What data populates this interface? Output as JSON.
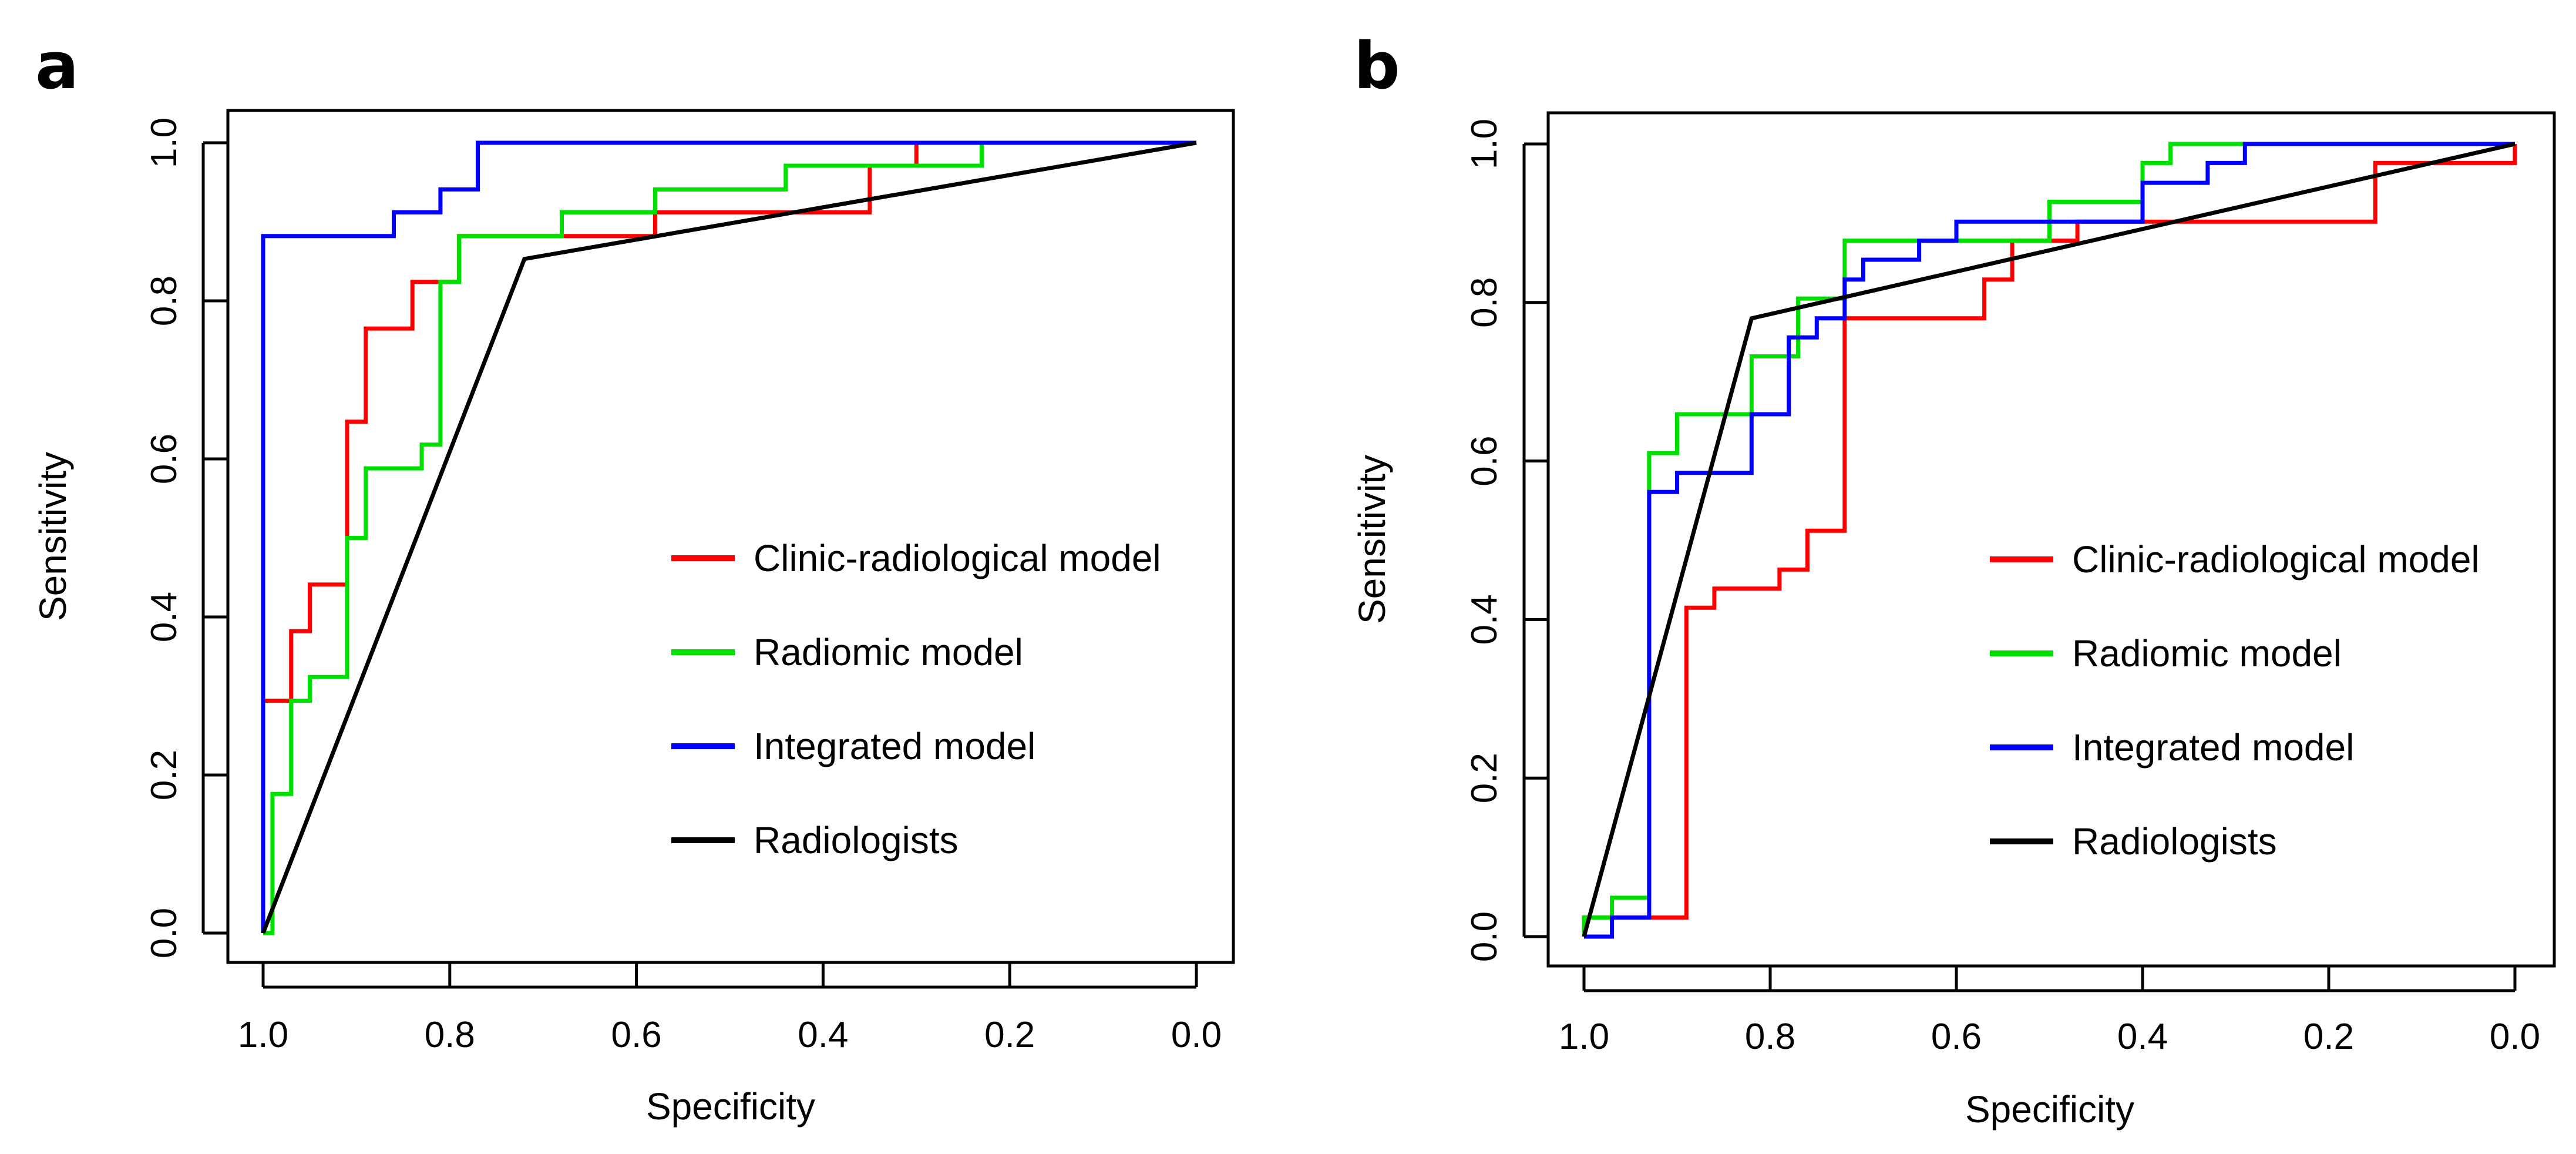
{
  "chart_data": [
    {
      "panel_label": "a",
      "type": "line",
      "xlabel": "Specificity",
      "ylabel": "Sensitivity",
      "xlim": [
        1.0,
        0.0
      ],
      "ylim": [
        0.0,
        1.0
      ],
      "x_ticks": [
        "1.0",
        "0.8",
        "0.6",
        "0.4",
        "0.2",
        "0.0"
      ],
      "y_ticks": [
        "0.0",
        "0.2",
        "0.4",
        "0.6",
        "0.8",
        "1.0"
      ],
      "grid": false,
      "legend_position": "bottom-right",
      "series": [
        {
          "name": "Clinic-radiological model",
          "color": "#ff0000",
          "points": [
            [
              1.0,
              0.0
            ],
            [
              1.0,
              0.294
            ],
            [
              0.97,
              0.294
            ],
            [
              0.97,
              0.382
            ],
            [
              0.95,
              0.382
            ],
            [
              0.95,
              0.441
            ],
            [
              0.91,
              0.441
            ],
            [
              0.91,
              0.647
            ],
            [
              0.89,
              0.647
            ],
            [
              0.89,
              0.765
            ],
            [
              0.84,
              0.765
            ],
            [
              0.84,
              0.824
            ],
            [
              0.79,
              0.824
            ],
            [
              0.79,
              0.882
            ],
            [
              0.58,
              0.882
            ],
            [
              0.58,
              0.912
            ],
            [
              0.35,
              0.912
            ],
            [
              0.35,
              0.971
            ],
            [
              0.3,
              0.971
            ],
            [
              0.3,
              1.0
            ],
            [
              0.0,
              1.0
            ]
          ]
        },
        {
          "name": "Radiomic model",
          "color": "#00e000",
          "points": [
            [
              1.0,
              0.0
            ],
            [
              0.99,
              0.0
            ],
            [
              0.99,
              0.176
            ],
            [
              0.97,
              0.176
            ],
            [
              0.97,
              0.294
            ],
            [
              0.95,
              0.294
            ],
            [
              0.95,
              0.324
            ],
            [
              0.91,
              0.324
            ],
            [
              0.91,
              0.5
            ],
            [
              0.89,
              0.5
            ],
            [
              0.89,
              0.588
            ],
            [
              0.83,
              0.588
            ],
            [
              0.83,
              0.618
            ],
            [
              0.81,
              0.618
            ],
            [
              0.81,
              0.824
            ],
            [
              0.79,
              0.824
            ],
            [
              0.79,
              0.882
            ],
            [
              0.68,
              0.882
            ],
            [
              0.68,
              0.912
            ],
            [
              0.58,
              0.912
            ],
            [
              0.58,
              0.941
            ],
            [
              0.44,
              0.941
            ],
            [
              0.44,
              0.971
            ],
            [
              0.23,
              0.971
            ],
            [
              0.23,
              1.0
            ],
            [
              0.0,
              1.0
            ]
          ]
        },
        {
          "name": "Integrated model",
          "color": "#0000ff",
          "points": [
            [
              1.0,
              0.0
            ],
            [
              1.0,
              0.882
            ],
            [
              0.86,
              0.882
            ],
            [
              0.86,
              0.912
            ],
            [
              0.81,
              0.912
            ],
            [
              0.81,
              0.941
            ],
            [
              0.77,
              0.941
            ],
            [
              0.77,
              1.0
            ],
            [
              0.0,
              1.0
            ]
          ]
        },
        {
          "name": "Radiologists",
          "color": "#000000",
          "points": [
            [
              1.0,
              0.0
            ],
            [
              0.72,
              0.853
            ],
            [
              0.0,
              1.0
            ]
          ]
        }
      ]
    },
    {
      "panel_label": "b",
      "type": "line",
      "xlabel": "Specificity",
      "ylabel": "Sensitivity",
      "xlim": [
        1.0,
        0.0
      ],
      "ylim": [
        0.0,
        1.0
      ],
      "x_ticks": [
        "1.0",
        "0.8",
        "0.6",
        "0.4",
        "0.2",
        "0.0"
      ],
      "y_ticks": [
        "0.0",
        "0.2",
        "0.4",
        "0.6",
        "0.8",
        "1.0"
      ],
      "grid": false,
      "legend_position": "bottom-right",
      "series": [
        {
          "name": "Clinic-radiological model",
          "color": "#ff0000",
          "points": [
            [
              1.0,
              0.0
            ],
            [
              1.0,
              0.024
            ],
            [
              0.89,
              0.024
            ],
            [
              0.89,
              0.415
            ],
            [
              0.86,
              0.415
            ],
            [
              0.86,
              0.439
            ],
            [
              0.79,
              0.439
            ],
            [
              0.79,
              0.463
            ],
            [
              0.76,
              0.463
            ],
            [
              0.76,
              0.512
            ],
            [
              0.72,
              0.512
            ],
            [
              0.72,
              0.78
            ],
            [
              0.57,
              0.78
            ],
            [
              0.57,
              0.829
            ],
            [
              0.54,
              0.829
            ],
            [
              0.54,
              0.878
            ],
            [
              0.47,
              0.878
            ],
            [
              0.47,
              0.902
            ],
            [
              0.15,
              0.902
            ],
            [
              0.15,
              0.976
            ],
            [
              0.0,
              0.976
            ],
            [
              0.0,
              1.0
            ]
          ]
        },
        {
          "name": "Radiomic model",
          "color": "#00e000",
          "points": [
            [
              1.0,
              0.0
            ],
            [
              1.0,
              0.024
            ],
            [
              0.97,
              0.024
            ],
            [
              0.97,
              0.049
            ],
            [
              0.93,
              0.049
            ],
            [
              0.93,
              0.61
            ],
            [
              0.9,
              0.61
            ],
            [
              0.9,
              0.659
            ],
            [
              0.82,
              0.659
            ],
            [
              0.82,
              0.732
            ],
            [
              0.77,
              0.732
            ],
            [
              0.77,
              0.805
            ],
            [
              0.72,
              0.805
            ],
            [
              0.72,
              0.878
            ],
            [
              0.5,
              0.878
            ],
            [
              0.5,
              0.927
            ],
            [
              0.4,
              0.927
            ],
            [
              0.4,
              0.976
            ],
            [
              0.37,
              0.976
            ],
            [
              0.37,
              1.0
            ],
            [
              0.0,
              1.0
            ]
          ]
        },
        {
          "name": "Integrated model",
          "color": "#0000ff",
          "points": [
            [
              1.0,
              0.0
            ],
            [
              0.97,
              0.0
            ],
            [
              0.97,
              0.024
            ],
            [
              0.93,
              0.024
            ],
            [
              0.93,
              0.561
            ],
            [
              0.9,
              0.561
            ],
            [
              0.9,
              0.585
            ],
            [
              0.82,
              0.585
            ],
            [
              0.82,
              0.659
            ],
            [
              0.78,
              0.659
            ],
            [
              0.78,
              0.756
            ],
            [
              0.75,
              0.756
            ],
            [
              0.75,
              0.78
            ],
            [
              0.72,
              0.78
            ],
            [
              0.72,
              0.829
            ],
            [
              0.7,
              0.829
            ],
            [
              0.7,
              0.854
            ],
            [
              0.64,
              0.854
            ],
            [
              0.64,
              0.878
            ],
            [
              0.6,
              0.878
            ],
            [
              0.6,
              0.902
            ],
            [
              0.4,
              0.902
            ],
            [
              0.4,
              0.951
            ],
            [
              0.33,
              0.951
            ],
            [
              0.33,
              0.976
            ],
            [
              0.29,
              0.976
            ],
            [
              0.29,
              1.0
            ],
            [
              0.0,
              1.0
            ]
          ]
        },
        {
          "name": "Radiologists",
          "color": "#000000",
          "points": [
            [
              1.0,
              0.0
            ],
            [
              0.82,
              0.78
            ],
            [
              0.0,
              1.0
            ]
          ]
        }
      ]
    }
  ]
}
